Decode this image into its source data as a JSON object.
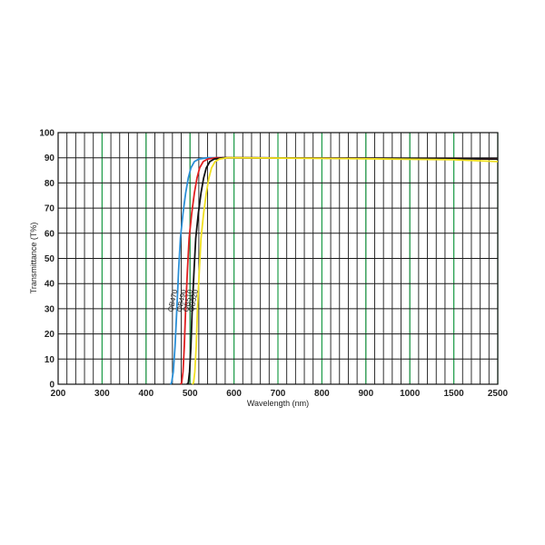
{
  "chart_data": {
    "type": "line",
    "title": "",
    "xlabel": "Wavelength (nm)",
    "ylabel": "Transmittance (T%)",
    "ylim": [
      0,
      100
    ],
    "yticks": [
      "0",
      "10",
      "20",
      "30",
      "40",
      "50",
      "60",
      "70",
      "80",
      "90",
      "100"
    ],
    "xticks": [
      "200",
      "300",
      "400",
      "500",
      "600",
      "700",
      "800",
      "900",
      "1000",
      "1500",
      "2500"
    ],
    "grid": true,
    "legend": "none (series labelled on curves)",
    "colors": {
      "grid_minor": "#1a1a1a",
      "grid_major": "#1f9e4a",
      "OB470": "#2b8fd6",
      "OB490": "#e02020",
      "OB510": "#111111",
      "OB520": "#f0e020"
    },
    "series": [
      {
        "name": "OB470",
        "color": "#2b8fd6",
        "points": [
          [
            455,
            0
          ],
          [
            458,
            0.5
          ],
          [
            462,
            5
          ],
          [
            466,
            15
          ],
          [
            470,
            30
          ],
          [
            474,
            45
          ],
          [
            478,
            58
          ],
          [
            484,
            68
          ],
          [
            490,
            76
          ],
          [
            496,
            82
          ],
          [
            502,
            86
          ],
          [
            510,
            88.5
          ],
          [
            520,
            89.5
          ],
          [
            540,
            90
          ],
          [
            600,
            90
          ],
          [
            900,
            89.8
          ],
          [
            1500,
            89.7
          ],
          [
            2500,
            89.5
          ]
        ]
      },
      {
        "name": "OB490",
        "color": "#e02020",
        "points": [
          [
            478,
            0
          ],
          [
            481,
            0.5
          ],
          [
            484,
            5
          ],
          [
            487,
            15
          ],
          [
            490,
            30
          ],
          [
            494,
            45
          ],
          [
            498,
            58
          ],
          [
            504,
            68
          ],
          [
            510,
            76
          ],
          [
            516,
            82
          ],
          [
            522,
            86
          ],
          [
            530,
            88.5
          ],
          [
            540,
            89.5
          ],
          [
            560,
            90
          ],
          [
            600,
            90
          ],
          [
            900,
            89.8
          ],
          [
            1500,
            89.7
          ],
          [
            2500,
            89.5
          ]
        ]
      },
      {
        "name": "OB510",
        "color": "#111111",
        "points": [
          [
            493,
            0
          ],
          [
            496,
            0.5
          ],
          [
            499,
            5
          ],
          [
            502,
            15
          ],
          [
            505,
            30
          ],
          [
            509,
            45
          ],
          [
            513,
            58
          ],
          [
            519,
            68
          ],
          [
            525,
            76
          ],
          [
            531,
            82
          ],
          [
            537,
            86
          ],
          [
            545,
            88.5
          ],
          [
            555,
            89.5
          ],
          [
            575,
            90
          ],
          [
            600,
            90
          ],
          [
            900,
            89.8
          ],
          [
            1500,
            89.7
          ],
          [
            2500,
            89.5
          ]
        ]
      },
      {
        "name": "OB520",
        "color": "#f0e020",
        "points": [
          [
            505,
            0
          ],
          [
            508,
            0.5
          ],
          [
            511,
            5
          ],
          [
            514,
            15
          ],
          [
            517,
            30
          ],
          [
            521,
            45
          ],
          [
            525,
            58
          ],
          [
            531,
            68
          ],
          [
            537,
            76
          ],
          [
            543,
            82
          ],
          [
            549,
            86
          ],
          [
            557,
            88.5
          ],
          [
            567,
            89.5
          ],
          [
            585,
            90
          ],
          [
            600,
            90
          ],
          [
            900,
            89.6
          ],
          [
            1500,
            89.2
          ],
          [
            2500,
            88.5
          ]
        ]
      }
    ]
  }
}
